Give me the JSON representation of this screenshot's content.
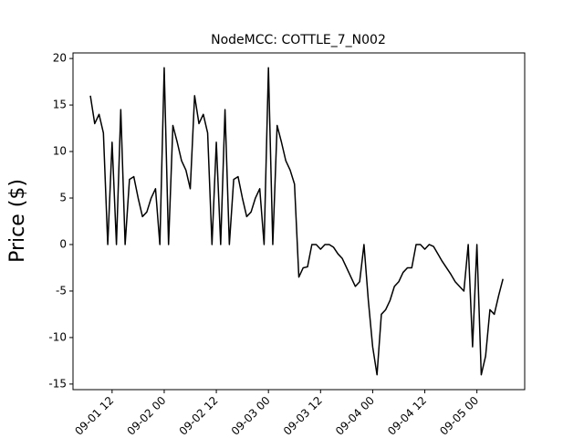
{
  "chart_data": {
    "type": "line",
    "title": "NodeMCC: COTTLE_7_N002",
    "y_label": "Price ($)",
    "x": [
      "09-01 07",
      "09-01 08",
      "09-01 09",
      "09-01 10",
      "09-01 11",
      "09-01 12",
      "09-01 13",
      "09-01 14",
      "09-01 15",
      "09-01 16",
      "09-01 17",
      "09-01 18",
      "09-01 19",
      "09-01 20",
      "09-01 21",
      "09-01 22",
      "09-01 23",
      "09-02 00",
      "09-02 01",
      "09-02 02",
      "09-02 03",
      "09-02 04",
      "09-02 05",
      "09-02 06",
      "09-02 07",
      "09-02 08",
      "09-02 09",
      "09-02 10",
      "09-02 11",
      "09-02 12",
      "09-02 13",
      "09-02 14",
      "09-02 15",
      "09-02 16",
      "09-02 17",
      "09-02 18",
      "09-02 19",
      "09-02 20",
      "09-02 21",
      "09-02 22",
      "09-02 23",
      "09-03 00",
      "09-03 01",
      "09-03 02",
      "09-03 03",
      "09-03 04",
      "09-03 05",
      "09-03 06",
      "09-03 07",
      "09-03 08",
      "09-03 09",
      "09-03 10",
      "09-03 11",
      "09-03 12",
      "09-03 13",
      "09-03 14",
      "09-03 15",
      "09-03 16",
      "09-03 17",
      "09-03 18",
      "09-03 19",
      "09-03 20",
      "09-03 21",
      "09-03 22",
      "09-03 23",
      "09-04 00",
      "09-04 01",
      "09-04 02",
      "09-04 03",
      "09-04 04",
      "09-04 05",
      "09-04 06",
      "09-04 07",
      "09-04 08",
      "09-04 09",
      "09-04 10",
      "09-04 11",
      "09-04 12",
      "09-04 13",
      "09-04 14",
      "09-04 15",
      "09-04 16",
      "09-04 17",
      "09-04 18",
      "09-04 19",
      "09-04 20",
      "09-04 21",
      "09-04 22",
      "09-04 23",
      "09-05 00",
      "09-05 01",
      "09-05 02",
      "09-05 03",
      "09-05 04",
      "09-05 05",
      "09-05 06"
    ],
    "series": [
      {
        "name": "COTTLE_7_N002",
        "color": "#000000",
        "values": [
          16,
          13,
          14,
          12,
          0,
          11,
          0,
          14.5,
          0,
          7,
          7.3,
          5,
          3,
          3.5,
          5,
          6,
          0,
          19,
          0,
          12.8,
          11,
          9,
          8,
          6,
          16,
          13,
          14,
          12,
          0,
          11,
          0,
          14.5,
          0,
          7,
          7.3,
          5,
          3,
          3.5,
          5,
          6,
          0,
          19,
          0,
          12.8,
          11,
          9,
          8,
          6.5,
          -3.5,
          -2.5,
          -2.4,
          0,
          0,
          -0.5,
          0,
          0,
          -0.3,
          -1,
          -1.5,
          -2.5,
          -3.5,
          -4.5,
          -4,
          0,
          -6,
          -11,
          -14,
          -7.5,
          -7,
          -6,
          -4.5,
          -4,
          -3,
          -2.5,
          -2.5,
          0,
          0,
          -0.5,
          0,
          -0.2,
          -1,
          -1.8,
          -2.5,
          -3.2,
          -4,
          -4.5,
          -5,
          0,
          -11,
          0,
          -14,
          -12,
          -7,
          -7.5,
          -5.5,
          -3.7
        ]
      }
    ],
    "xlim": [
      "09-01 03",
      "09-05 11"
    ],
    "xticks": [
      "09-01 12",
      "09-02 00",
      "09-02 12",
      "09-03 00",
      "09-03 12",
      "09-04 00",
      "09-04 12",
      "09-05 00"
    ],
    "ylim": [
      -15.6,
      20.6
    ],
    "yticks": [
      -15,
      -10,
      -5,
      0,
      5,
      10,
      15,
      20
    ]
  }
}
